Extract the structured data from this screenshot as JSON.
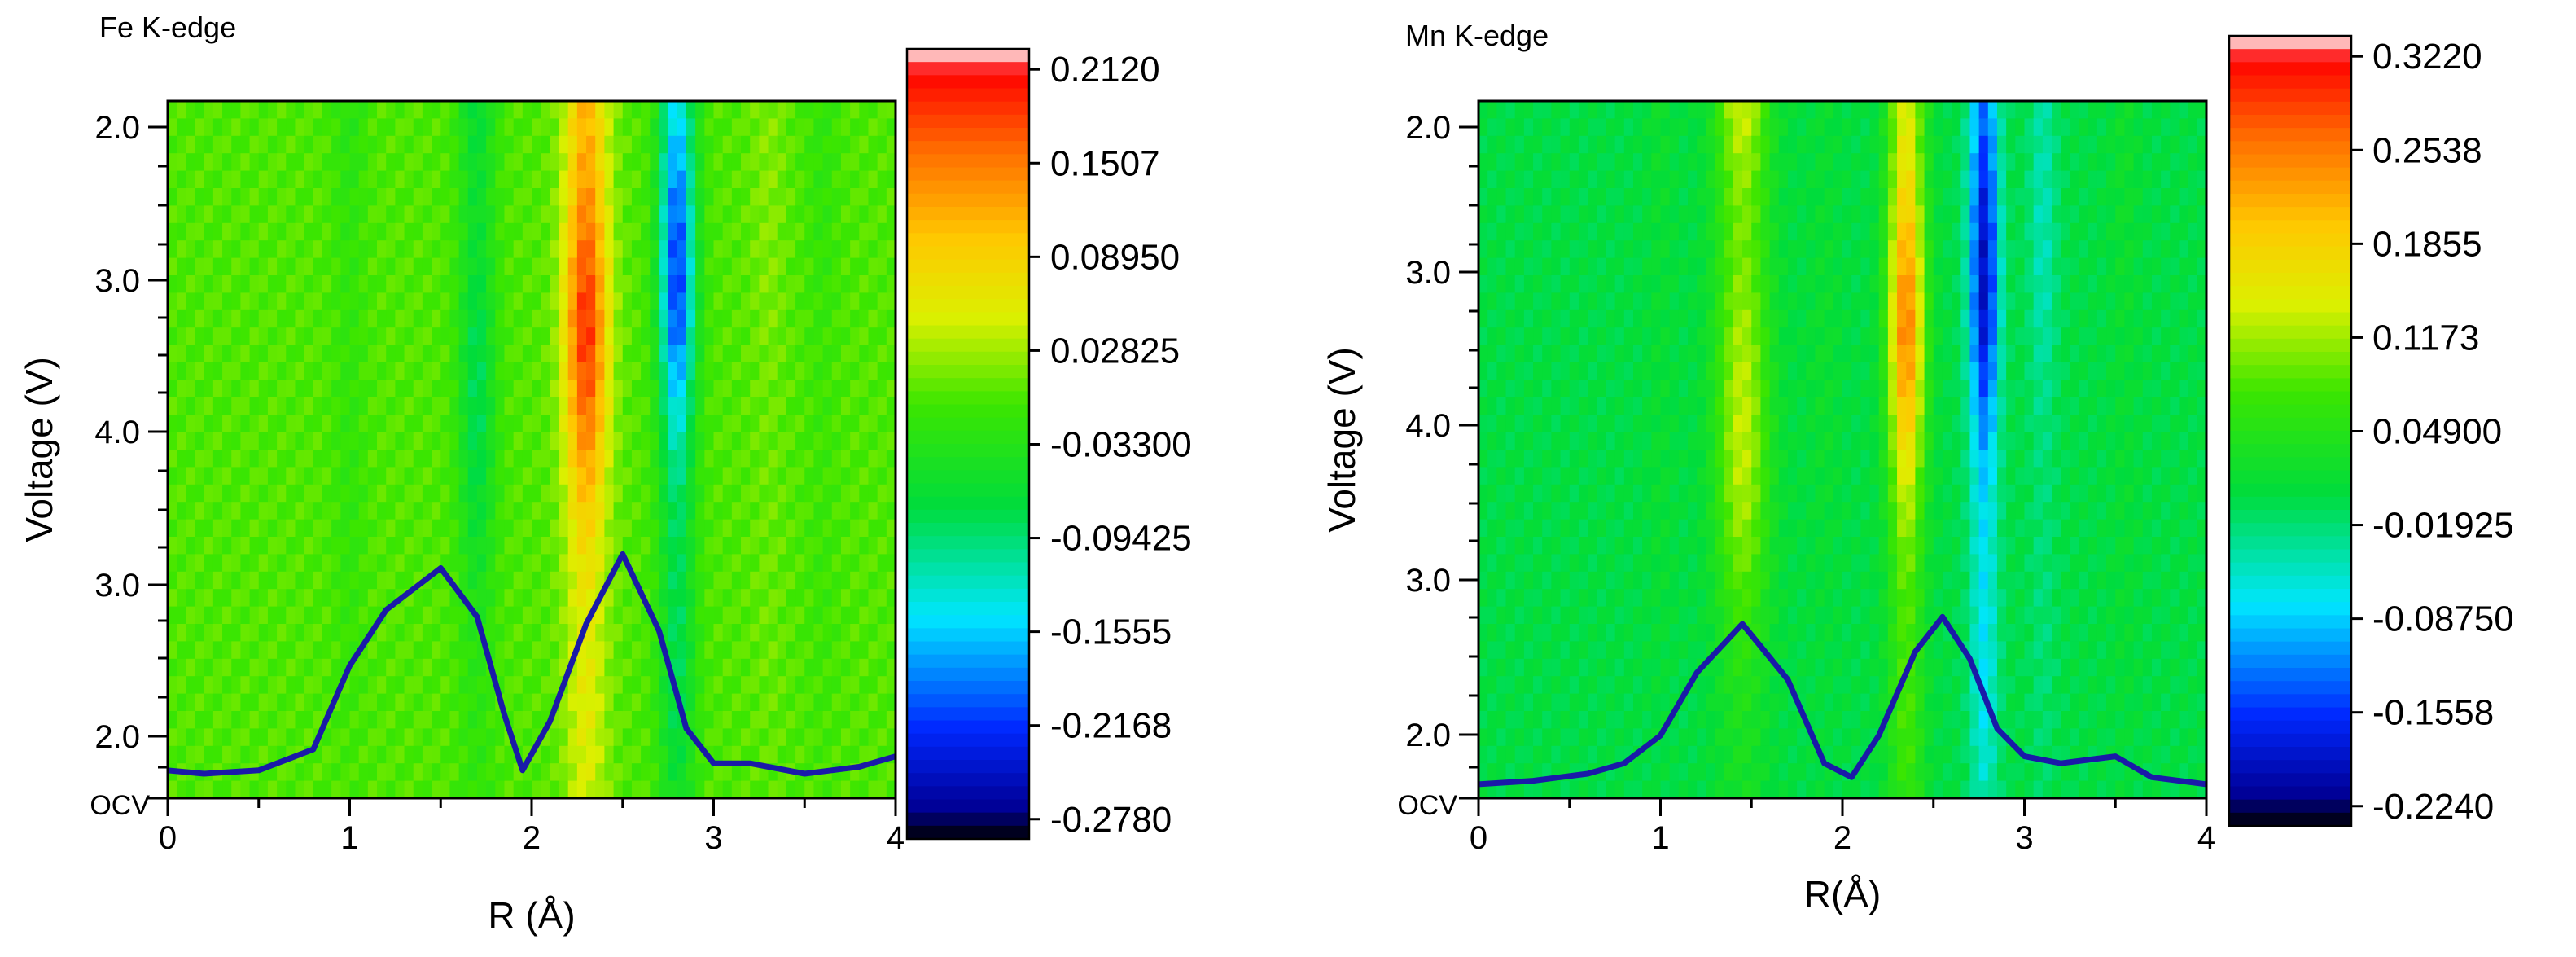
{
  "chart_data": [
    {
      "type": "heatmap",
      "title": "Fe K-edge",
      "xlabel": "R (Å)",
      "ylabel": "Voltage (V)",
      "xlim": [
        0,
        4
      ],
      "x_ticks": [
        "0",
        "1",
        "2",
        "3",
        "4"
      ],
      "y_tick_labels": [
        "OCV",
        "2.0",
        "3.0",
        "4.0",
        "3.0",
        "2.0"
      ],
      "colorbar_labels": [
        "0.2120",
        "0.1507",
        "0.08950",
        "0.02825",
        "-0.03300",
        "-0.09425",
        "-0.1555",
        "-0.2168",
        "-0.2780"
      ],
      "colorbar_range": [
        -0.278,
        0.212
      ],
      "bands": [
        {
          "r": 1.0,
          "width": 0.09,
          "amp": -0.03
        },
        {
          "r": 1.7,
          "width": 0.1,
          "amp": -0.1
        },
        {
          "r": 2.3,
          "width": 0.12,
          "amp": 0.2
        },
        {
          "r": 2.8,
          "width": 0.1,
          "amp": -0.22
        },
        {
          "r": 3.3,
          "width": 0.1,
          "amp": 0.02
        },
        {
          "r": 3.6,
          "width": 0.09,
          "amp": -0.02
        }
      ],
      "overlay_curve": [
        [
          0.0,
          0.04
        ],
        [
          0.2,
          0.035
        ],
        [
          0.5,
          0.04
        ],
        [
          0.8,
          0.07
        ],
        [
          1.0,
          0.19
        ],
        [
          1.2,
          0.27
        ],
        [
          1.5,
          0.33
        ],
        [
          1.7,
          0.26
        ],
        [
          1.85,
          0.12
        ],
        [
          1.95,
          0.04
        ],
        [
          2.1,
          0.11
        ],
        [
          2.3,
          0.25
        ],
        [
          2.5,
          0.35
        ],
        [
          2.7,
          0.24
        ],
        [
          2.85,
          0.1
        ],
        [
          3.0,
          0.05
        ],
        [
          3.2,
          0.05
        ],
        [
          3.5,
          0.035
        ],
        [
          3.8,
          0.045
        ],
        [
          4.0,
          0.06
        ]
      ]
    },
    {
      "type": "heatmap",
      "title": "Mn K-edge",
      "xlabel": "R(Å)",
      "ylabel": "Voltage (V)",
      "xlim": [
        0,
        4
      ],
      "x_ticks": [
        "0",
        "1",
        "2",
        "3",
        "4"
      ],
      "y_tick_labels": [
        "OCV",
        "2.0",
        "3.0",
        "4.0",
        "3.0",
        "2.0"
      ],
      "colorbar_labels": [
        "0.3220",
        "0.2538",
        "0.1855",
        "0.1173",
        "0.04900",
        "-0.01925",
        "-0.08750",
        "-0.1558",
        "-0.2240"
      ],
      "colorbar_range": [
        -0.224,
        0.322
      ],
      "bands": [
        {
          "r": 1.0,
          "width": 0.08,
          "amp": 0.02
        },
        {
          "r": 1.45,
          "width": 0.15,
          "amp": 0.17
        },
        {
          "r": 1.9,
          "width": 0.1,
          "amp": 0.02
        },
        {
          "r": 2.35,
          "width": 0.1,
          "amp": 0.26
        },
        {
          "r": 2.78,
          "width": 0.08,
          "amp": -0.2
        },
        {
          "r": 3.1,
          "width": 0.08,
          "amp": -0.05
        },
        {
          "r": 3.55,
          "width": 0.08,
          "amp": 0.02
        }
      ],
      "overlay_curve": [
        [
          0.0,
          0.02
        ],
        [
          0.3,
          0.025
        ],
        [
          0.6,
          0.035
        ],
        [
          0.8,
          0.05
        ],
        [
          1.0,
          0.09
        ],
        [
          1.2,
          0.18
        ],
        [
          1.45,
          0.25
        ],
        [
          1.7,
          0.17
        ],
        [
          1.9,
          0.05
        ],
        [
          2.05,
          0.03
        ],
        [
          2.2,
          0.09
        ],
        [
          2.4,
          0.21
        ],
        [
          2.55,
          0.26
        ],
        [
          2.7,
          0.2
        ],
        [
          2.85,
          0.1
        ],
        [
          3.0,
          0.06
        ],
        [
          3.2,
          0.05
        ],
        [
          3.5,
          0.06
        ],
        [
          3.7,
          0.03
        ],
        [
          4.0,
          0.02
        ]
      ]
    }
  ]
}
